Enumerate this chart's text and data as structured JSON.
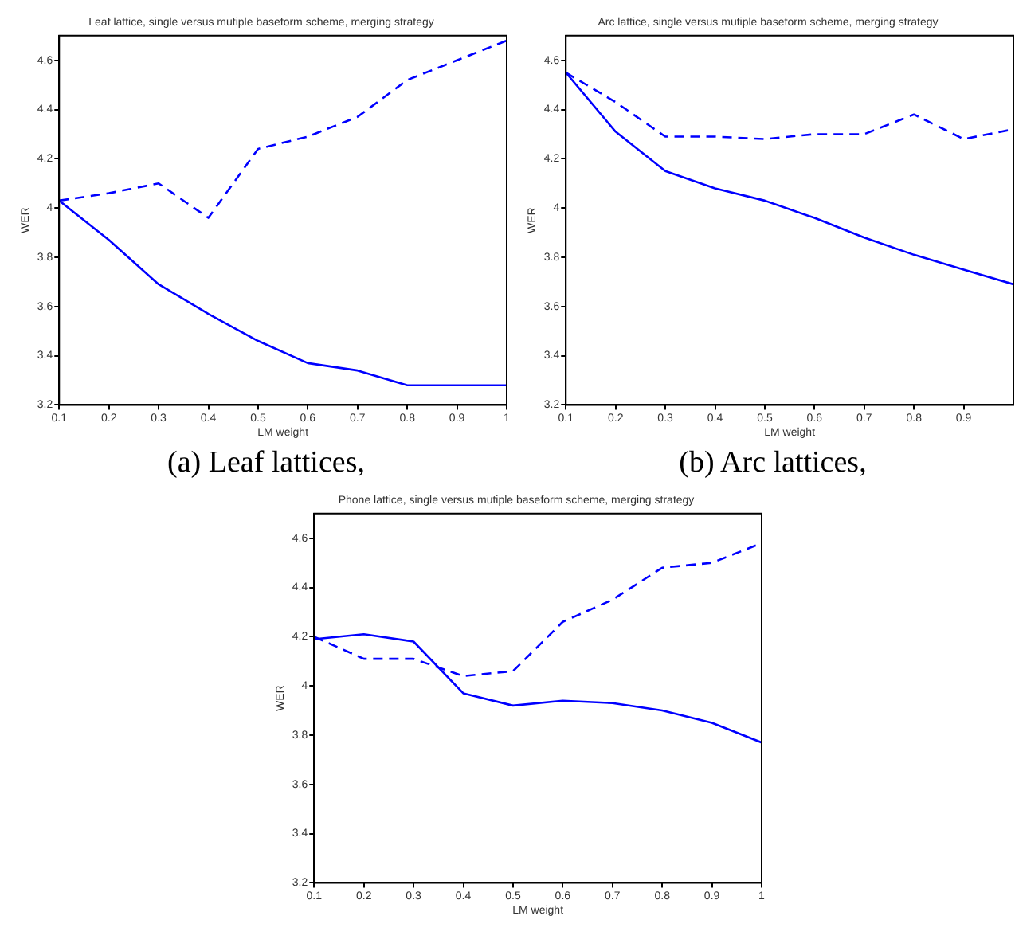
{
  "chart_data": [
    {
      "type": "line",
      "title": "Leaf lattice, single versus mutiple baseform scheme, merging strategy",
      "xlabel": "LM weight",
      "ylabel": "WER",
      "annotations": [
        "(a) Leaf lattices,"
      ],
      "x": [
        0.1,
        0.2,
        0.3,
        0.4,
        0.5,
        0.6,
        0.7,
        0.8,
        0.9,
        1
      ],
      "xlim": [
        0.1,
        1
      ],
      "xticks": [
        0.1,
        0.2,
        0.3,
        0.4,
        0.5,
        0.6,
        0.7,
        0.8,
        0.9,
        1
      ],
      "ylim": [
        3.2,
        4.7
      ],
      "yticks": [
        3.2,
        3.4,
        3.6,
        3.8,
        4,
        4.2,
        4.4,
        4.6
      ],
      "grid": false,
      "legend": false,
      "marker": "none",
      "series": [
        {
          "color": "#0000ff",
          "line_style": "solid",
          "values": [
            4.03,
            3.87,
            3.69,
            3.57,
            3.46,
            3.37,
            3.34,
            3.28,
            3.28,
            3.28
          ]
        },
        {
          "color": "#0000ff",
          "line_style": "dashed",
          "values": [
            4.03,
            4.06,
            4.1,
            3.96,
            4.24,
            4.29,
            4.37,
            4.52,
            4.6,
            4.68
          ]
        }
      ]
    },
    {
      "type": "line",
      "title": "Arc lattice, single versus mutiple baseform scheme, merging strategy",
      "xlabel": "LM weight",
      "ylabel": "WER",
      "annotations": [
        "(b) Arc lattices,"
      ],
      "x": [
        0.1,
        0.2,
        0.3,
        0.4,
        0.5,
        0.6,
        0.7,
        0.8,
        0.9,
        1
      ],
      "xlim": [
        0.1,
        1
      ],
      "xticks": [
        0.1,
        0.2,
        0.3,
        0.4,
        0.5,
        0.6,
        0.7,
        0.8,
        0.9
      ],
      "ylim": [
        3.2,
        4.7
      ],
      "yticks": [
        3.2,
        3.4,
        3.6,
        3.8,
        4,
        4.2,
        4.4,
        4.6
      ],
      "grid": false,
      "legend": false,
      "marker": "none",
      "series": [
        {
          "color": "#0000ff",
          "line_style": "solid",
          "values": [
            4.55,
            4.31,
            4.15,
            4.08,
            4.03,
            3.96,
            3.88,
            3.81,
            3.75,
            3.69
          ]
        },
        {
          "color": "#0000ff",
          "line_style": "dashed",
          "values": [
            4.55,
            4.43,
            4.29,
            4.29,
            4.28,
            4.3,
            4.3,
            4.38,
            4.28,
            4.32
          ]
        }
      ]
    },
    {
      "type": "line",
      "title": "Phone lattice, single versus mutiple baseform scheme, merging strategy",
      "xlabel": "LM weight",
      "ylabel": "WER",
      "x": [
        0.1,
        0.2,
        0.3,
        0.4,
        0.5,
        0.6,
        0.7,
        0.8,
        0.9,
        1
      ],
      "xlim": [
        0.1,
        1
      ],
      "xticks": [
        0.1,
        0.2,
        0.3,
        0.4,
        0.5,
        0.6,
        0.7,
        0.8,
        0.9,
        1
      ],
      "ylim": [
        3.2,
        4.7
      ],
      "yticks": [
        3.2,
        3.4,
        3.6,
        3.8,
        4,
        4.2,
        4.4,
        4.6
      ],
      "grid": false,
      "legend": false,
      "marker": "none",
      "series": [
        {
          "color": "#0000ff",
          "line_style": "solid",
          "values": [
            4.19,
            4.21,
            4.18,
            3.97,
            3.92,
            3.94,
            3.93,
            3.9,
            3.85,
            3.77
          ]
        },
        {
          "color": "#0000ff",
          "line_style": "dashed",
          "values": [
            4.2,
            4.11,
            4.11,
            4.04,
            4.06,
            4.26,
            4.35,
            4.48,
            4.5,
            4.58
          ]
        }
      ]
    }
  ]
}
